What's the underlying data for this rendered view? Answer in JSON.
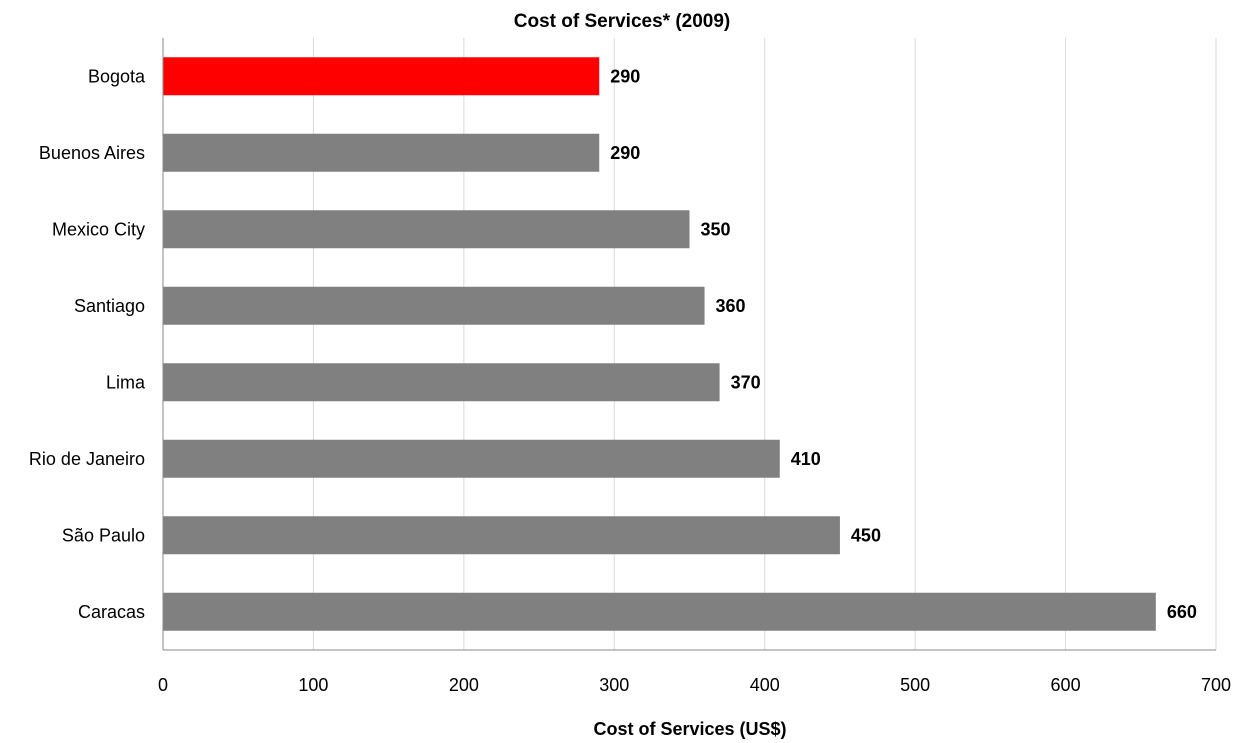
{
  "chart_data": {
    "type": "bar",
    "orientation": "horizontal",
    "title": "Cost of Services* (2009)",
    "xlabel": "Cost of Services (US$)",
    "ylabel": "",
    "categories": [
      "Bogota",
      "Buenos Aires",
      "Mexico City",
      "Santiago",
      "Lima",
      "Rio de Janeiro",
      "São Paulo",
      "Caracas"
    ],
    "values": [
      290,
      290,
      350,
      360,
      370,
      410,
      450,
      660
    ],
    "data_labels": [
      "290",
      "290",
      "350",
      "360",
      "370",
      "410",
      "450",
      "660"
    ],
    "xlim": [
      0,
      700
    ],
    "ticks": [
      0,
      100,
      200,
      300,
      400,
      500,
      600,
      700
    ],
    "tick_labels": [
      "0",
      "100",
      "200",
      "300",
      "400",
      "500",
      "600",
      "700"
    ],
    "grid": true,
    "legend": "none",
    "colors": {
      "default_bar": "#808080",
      "highlight_bar": "#ff0000",
      "highlight_category": "Bogota",
      "gridline": "#d9d9d9",
      "text": "#000000"
    }
  }
}
